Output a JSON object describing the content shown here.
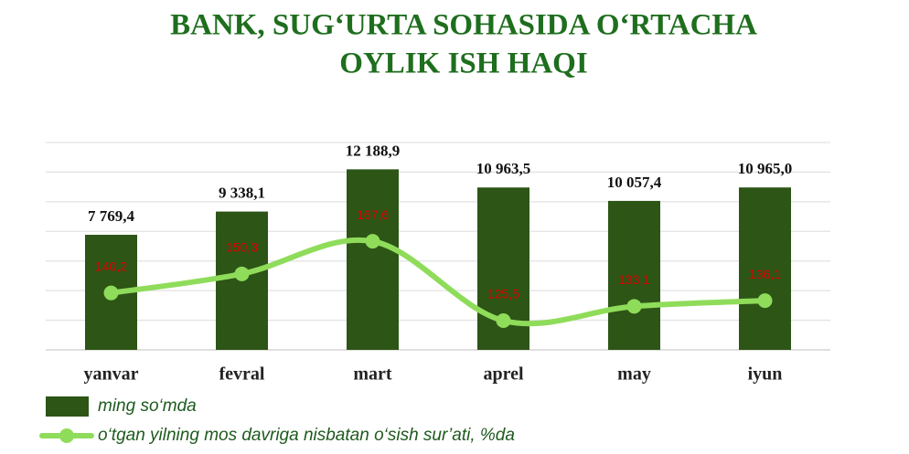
{
  "chart_data": {
    "type": "bar_line",
    "title": [
      "BANK, SUG‘URTA  SOHASIDA O‘RTACHA",
      "OYLIK ISH HAQI"
    ],
    "categories": [
      "yanvar",
      "fevral",
      "mart",
      "aprel",
      "may",
      "iyun"
    ],
    "series": [
      {
        "name": "ming so‘mda",
        "type": "bar",
        "color": "#2d5516",
        "values": [
          7769.4,
          9338.1,
          12188.9,
          10963.5,
          10057.4,
          10965.0
        ],
        "value_labels": [
          "7 769,4",
          "9 338,1",
          "12 188,9",
          "10 963,5",
          "10 057,4",
          "10 965,0"
        ]
      },
      {
        "name": "o‘tgan yilning mos davriga nisbatan o‘sish sur’ati, %da",
        "type": "line",
        "axis": "y2",
        "color": "#8fdc5a",
        "values": [
          140.2,
          150.3,
          167.6,
          125.5,
          133.1,
          136.1
        ],
        "value_labels": [
          "140,2",
          "150,3",
          "167,6",
          "125,5",
          "133,1",
          "136,1"
        ],
        "label_color": "#e00000"
      }
    ],
    "ylim": [
      0,
      14000
    ],
    "yticks": [
      0,
      2000,
      4000,
      6000,
      8000,
      10000,
      12000,
      14000
    ],
    "y2lim": [
      110,
      220
    ],
    "grid": true
  }
}
